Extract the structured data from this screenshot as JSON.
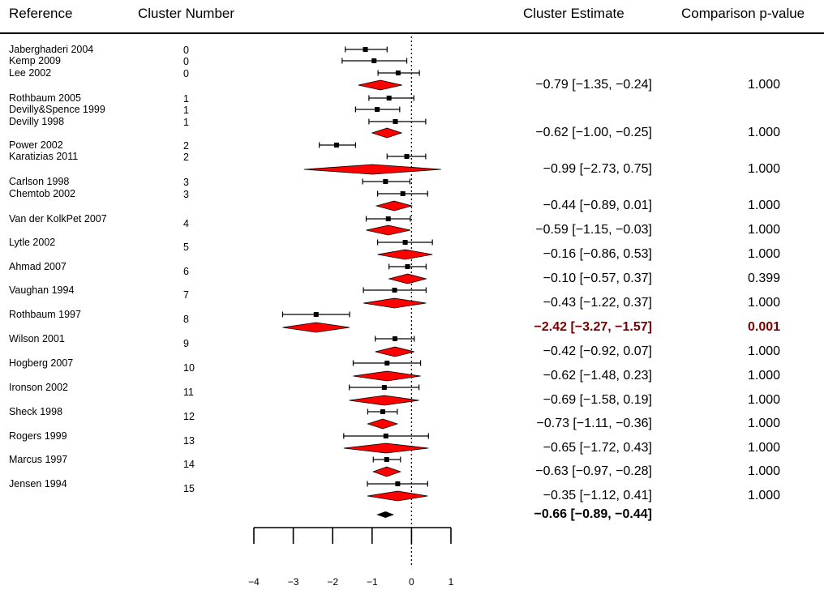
{
  "header": {
    "reference": "Reference",
    "cluster_number": "Cluster Number",
    "cluster_estimate": "Cluster Estimate",
    "comparison_p": "Comparison p-value"
  },
  "chart_data": {
    "type": "forest",
    "xlim": [
      -4,
      1
    ],
    "xticks": [
      "−4",
      "−3",
      "−2",
      "−1",
      "0",
      "1"
    ],
    "reference_line": 0,
    "colors": {
      "cluster_diamond": "#ff0000",
      "overall_diamond": "#000000",
      "significant_text": "#7a0000"
    },
    "studies": [
      {
        "name": "Jaberghaderi 2004",
        "cluster": "0",
        "est": -1.17,
        "lo": -1.68,
        "hi": -0.62
      },
      {
        "name": "Kemp 2009",
        "cluster": "0",
        "est": -0.95,
        "lo": -1.76,
        "hi": -0.12
      },
      {
        "name": "Lee 2002",
        "cluster": "0",
        "est": -0.34,
        "lo": -0.85,
        "hi": 0.2
      },
      {
        "name": "Rothbaum 2005",
        "cluster": "1",
        "est": -0.57,
        "lo": -1.08,
        "hi": 0.06
      },
      {
        "name": "Devilly&Spence 1999",
        "cluster": "1",
        "est": -0.87,
        "lo": -1.42,
        "hi": -0.3
      },
      {
        "name": "Devilly 1998",
        "cluster": "1",
        "est": -0.41,
        "lo": -1.08,
        "hi": 0.36
      },
      {
        "name": "Power 2002",
        "cluster": "2",
        "est": -1.9,
        "lo": -2.34,
        "hi": -1.42
      },
      {
        "name": "Karatizias 2011",
        "cluster": "2",
        "est": -0.12,
        "lo": -0.62,
        "hi": 0.36
      },
      {
        "name": "Carlson 1998",
        "cluster": "3",
        "est": -0.66,
        "lo": -1.24,
        "hi": -0.04
      },
      {
        "name": "Chemtob 2002",
        "cluster": "3",
        "est": -0.22,
        "lo": -0.86,
        "hi": 0.41
      },
      {
        "name": "Van der KolkPet 2007",
        "cluster": "4",
        "est": -0.59,
        "lo": -1.15,
        "hi": -0.03
      },
      {
        "name": "Lytle 2002",
        "cluster": "5",
        "est": -0.16,
        "lo": -0.86,
        "hi": 0.53
      },
      {
        "name": "Ahmad 2007",
        "cluster": "6",
        "est": -0.1,
        "lo": -0.57,
        "hi": 0.37
      },
      {
        "name": "Vaughan 1994",
        "cluster": "7",
        "est": -0.43,
        "lo": -1.22,
        "hi": 0.37
      },
      {
        "name": "Rothbaum 1997",
        "cluster": "8",
        "est": -2.42,
        "lo": -3.27,
        "hi": -1.57
      },
      {
        "name": "Wilson 2001",
        "cluster": "9",
        "est": -0.42,
        "lo": -0.92,
        "hi": 0.07
      },
      {
        "name": "Hogberg 2007",
        "cluster": "10",
        "est": -0.62,
        "lo": -1.48,
        "hi": 0.23
      },
      {
        "name": "Ironson 2002",
        "cluster": "11",
        "est": -0.69,
        "lo": -1.58,
        "hi": 0.19
      },
      {
        "name": "Sheck 1998",
        "cluster": "12",
        "est": -0.73,
        "lo": -1.11,
        "hi": -0.36
      },
      {
        "name": "Rogers 1999",
        "cluster": "13",
        "est": -0.65,
        "lo": -1.72,
        "hi": 0.43
      },
      {
        "name": "Marcus 1997",
        "cluster": "14",
        "est": -0.63,
        "lo": -0.97,
        "hi": -0.28
      },
      {
        "name": "Jensen 1994",
        "cluster": "15",
        "est": -0.35,
        "lo": -1.12,
        "hi": 0.41
      }
    ],
    "clusters": [
      {
        "est": -0.79,
        "lo": -1.35,
        "hi": -0.24,
        "label": "−0.79 [−1.35, −0.24]",
        "p": "1.000"
      },
      {
        "est": -0.62,
        "lo": -1.0,
        "hi": -0.25,
        "label": "−0.62 [−1.00, −0.25]",
        "p": "1.000"
      },
      {
        "est": -0.99,
        "lo": -2.73,
        "hi": 0.75,
        "label": "−0.99 [−2.73, 0.75]",
        "p": "1.000"
      },
      {
        "est": -0.44,
        "lo": -0.89,
        "hi": 0.01,
        "label": "−0.44 [−0.89, 0.01]",
        "p": "1.000"
      },
      {
        "est": -0.59,
        "lo": -1.15,
        "hi": -0.03,
        "label": "−0.59 [−1.15, −0.03]",
        "p": "1.000"
      },
      {
        "est": -0.16,
        "lo": -0.86,
        "hi": 0.53,
        "label": "−0.16 [−0.86, 0.53]",
        "p": "1.000"
      },
      {
        "est": -0.1,
        "lo": -0.57,
        "hi": 0.37,
        "label": "−0.10 [−0.57, 0.37]",
        "p": "0.399"
      },
      {
        "est": -0.43,
        "lo": -1.22,
        "hi": 0.37,
        "label": "−0.43 [−1.22, 0.37]",
        "p": "1.000"
      },
      {
        "est": -2.42,
        "lo": -3.27,
        "hi": -1.57,
        "label": "−2.42 [−3.27, −1.57]",
        "p": "0.001",
        "significant": true
      },
      {
        "est": -0.42,
        "lo": -0.92,
        "hi": 0.07,
        "label": "−0.42 [−0.92, 0.07]",
        "p": "1.000"
      },
      {
        "est": -0.62,
        "lo": -1.48,
        "hi": 0.23,
        "label": "−0.62 [−1.48, 0.23]",
        "p": "1.000"
      },
      {
        "est": -0.69,
        "lo": -1.58,
        "hi": 0.19,
        "label": "−0.69 [−1.58, 0.19]",
        "p": "1.000"
      },
      {
        "est": -0.73,
        "lo": -1.11,
        "hi": -0.36,
        "label": "−0.73 [−1.11, −0.36]",
        "p": "1.000"
      },
      {
        "est": -0.65,
        "lo": -1.72,
        "hi": 0.43,
        "label": "−0.65 [−1.72, 0.43]",
        "p": "1.000"
      },
      {
        "est": -0.63,
        "lo": -0.97,
        "hi": -0.28,
        "label": "−0.63 [−0.97, −0.28]",
        "p": "1.000"
      },
      {
        "est": -0.35,
        "lo": -1.12,
        "hi": 0.41,
        "label": "−0.35 [−1.12, 0.41]",
        "p": "1.000"
      }
    ],
    "overall": {
      "est": -0.66,
      "lo": -0.89,
      "hi": -0.44,
      "label": "−0.66 [−0.89, −0.44]"
    }
  }
}
